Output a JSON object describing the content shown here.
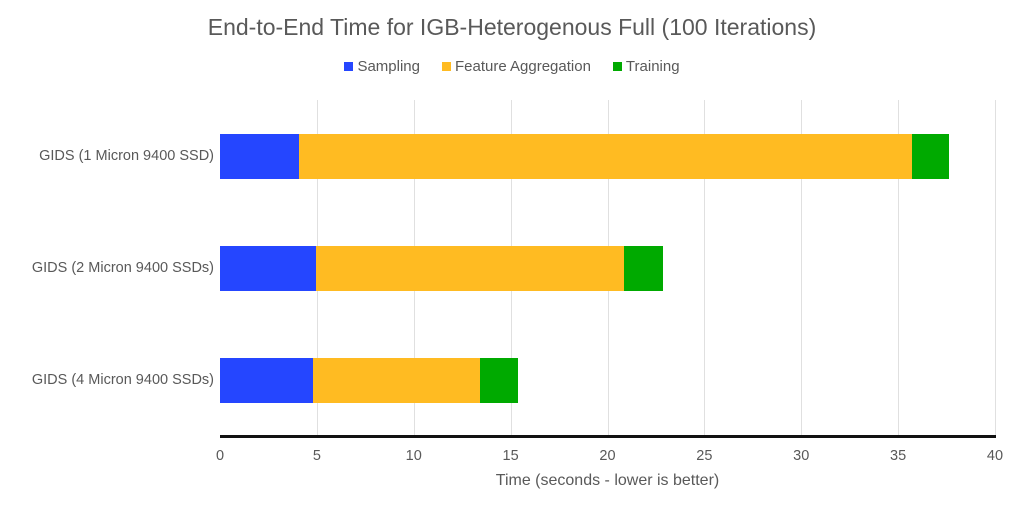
{
  "chart_data": {
    "type": "bar",
    "orientation": "horizontal",
    "stacked": true,
    "title": "End-to-End Time for IGB-Heterogenous Full (100 Iterations)",
    "xlabel": "Time (seconds - lower is better)",
    "ylabel": "",
    "xlim": [
      0,
      40
    ],
    "xticks": [
      "0",
      "5",
      "10",
      "15",
      "20",
      "25",
      "30",
      "35",
      "40"
    ],
    "grid": true,
    "legend_position": "top",
    "categories": [
      "GIDS (1 Micron 9400 SSD)",
      "GIDS (2 Micron 9400 SSDs)",
      "GIDS (4 Micron 9400 SSDs)"
    ],
    "series": [
      {
        "name": "Sampling",
        "color": "#2546ff",
        "values": [
          4.1,
          4.95,
          4.8
        ]
      },
      {
        "name": "Feature Aggregation",
        "color": "#ffbb22",
        "values": [
          31.6,
          15.9,
          8.6
        ]
      },
      {
        "name": "Training",
        "color": "#00aa00",
        "values": [
          1.9,
          2.0,
          2.0
        ]
      }
    ]
  }
}
